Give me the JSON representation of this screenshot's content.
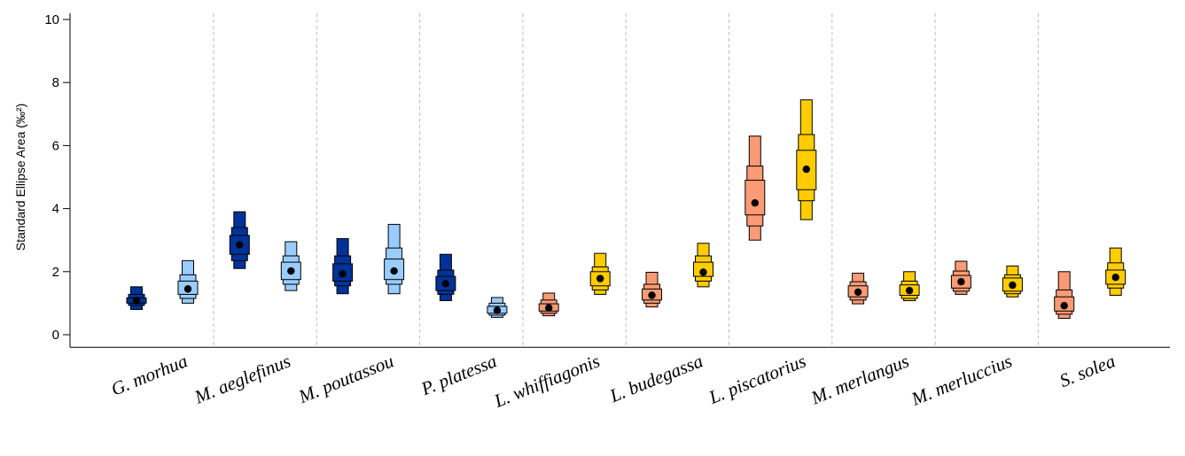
{
  "chart_data": {
    "type": "box",
    "ylabel": "Standard Ellipse Area (‰²)",
    "ylim": [
      -0.4,
      10.2
    ],
    "yticks": [
      0,
      2,
      4,
      6,
      8,
      10
    ],
    "grid": "vertical dashed separators between species",
    "colors": {
      "dark_blue": "#003399",
      "light_blue": "#99ccff",
      "salmon": "#fa9b75",
      "gold": "#ffcc00"
    },
    "categories": [
      "G. morhua",
      "M. aeglefinus",
      "M. poutassou",
      "P. platessa",
      "L. whiffiagonis",
      "L. budegassa",
      "L. piscatorius",
      "M. merlangus",
      "M. merluccius",
      "S. solea"
    ],
    "pairs": [
      [
        {
          "color": "dark_blue",
          "mode": 1.08,
          "ci50": [
            1.0,
            1.17
          ],
          "ci75": [
            0.93,
            1.28
          ],
          "ci95": [
            0.8,
            1.52
          ]
        },
        {
          "color": "light_blue",
          "mode": 1.45,
          "ci50": [
            1.28,
            1.7
          ],
          "ci75": [
            1.15,
            1.9
          ],
          "ci95": [
            1.0,
            2.35
          ]
        }
      ],
      [
        {
          "color": "dark_blue",
          "mode": 2.85,
          "ci50": [
            2.55,
            3.15
          ],
          "ci75": [
            2.35,
            3.4
          ],
          "ci95": [
            2.1,
            3.9
          ]
        },
        {
          "color": "light_blue",
          "mode": 2.02,
          "ci50": [
            1.75,
            2.3
          ],
          "ci75": [
            1.6,
            2.5
          ],
          "ci95": [
            1.4,
            2.95
          ]
        }
      ],
      [
        {
          "color": "dark_blue",
          "mode": 1.93,
          "ci50": [
            1.7,
            2.25
          ],
          "ci75": [
            1.55,
            2.5
          ],
          "ci95": [
            1.3,
            3.05
          ]
        },
        {
          "color": "light_blue",
          "mode": 2.02,
          "ci50": [
            1.75,
            2.4
          ],
          "ci75": [
            1.6,
            2.75
          ],
          "ci95": [
            1.3,
            3.5
          ]
        }
      ],
      [
        {
          "color": "dark_blue",
          "mode": 1.62,
          "ci50": [
            1.4,
            1.85
          ],
          "ci75": [
            1.28,
            2.05
          ],
          "ci95": [
            1.08,
            2.55
          ]
        },
        {
          "color": "light_blue",
          "mode": 0.77,
          "ci50": [
            0.68,
            0.9
          ],
          "ci75": [
            0.62,
            1.0
          ],
          "ci95": [
            0.55,
            1.18
          ]
        }
      ],
      [
        {
          "color": "salmon",
          "mode": 0.85,
          "ci50": [
            0.75,
            0.98
          ],
          "ci75": [
            0.68,
            1.1
          ],
          "ci95": [
            0.6,
            1.32
          ]
        },
        {
          "color": "gold",
          "mode": 1.78,
          "ci50": [
            1.55,
            2.0
          ],
          "ci75": [
            1.42,
            2.15
          ],
          "ci95": [
            1.28,
            2.58
          ]
        }
      ],
      [
        {
          "color": "salmon",
          "mode": 1.25,
          "ci50": [
            1.1,
            1.45
          ],
          "ci75": [
            1.0,
            1.6
          ],
          "ci95": [
            0.88,
            1.98
          ]
        },
        {
          "color": "gold",
          "mode": 1.98,
          "ci50": [
            1.85,
            2.3
          ],
          "ci75": [
            1.7,
            2.5
          ],
          "ci95": [
            1.52,
            2.9
          ]
        }
      ],
      [
        {
          "color": "salmon",
          "mode": 4.18,
          "ci50": [
            3.8,
            4.9
          ],
          "ci75": [
            3.45,
            5.35
          ],
          "ci95": [
            3.0,
            6.3
          ]
        },
        {
          "color": "gold",
          "mode": 5.25,
          "ci50": [
            4.6,
            5.85
          ],
          "ci75": [
            4.25,
            6.35
          ],
          "ci95": [
            3.65,
            7.45
          ]
        }
      ],
      [
        {
          "color": "salmon",
          "mode": 1.35,
          "ci50": [
            1.2,
            1.55
          ],
          "ci75": [
            1.1,
            1.68
          ],
          "ci95": [
            0.98,
            1.95
          ]
        },
        {
          "color": "gold",
          "mode": 1.4,
          "ci50": [
            1.25,
            1.58
          ],
          "ci75": [
            1.15,
            1.7
          ],
          "ci95": [
            1.08,
            2.0
          ]
        }
      ],
      [
        {
          "color": "salmon",
          "mode": 1.68,
          "ci50": [
            1.48,
            1.88
          ],
          "ci75": [
            1.38,
            2.02
          ],
          "ci95": [
            1.28,
            2.33
          ]
        },
        {
          "color": "gold",
          "mode": 1.57,
          "ci50": [
            1.38,
            1.8
          ],
          "ci75": [
            1.3,
            1.9
          ],
          "ci95": [
            1.2,
            2.18
          ]
        }
      ],
      [
        {
          "color": "salmon",
          "mode": 0.92,
          "ci50": [
            0.75,
            1.2
          ],
          "ci75": [
            0.65,
            1.42
          ],
          "ci95": [
            0.52,
            2.0
          ]
        },
        {
          "color": "gold",
          "mode": 1.82,
          "ci50": [
            1.6,
            2.05
          ],
          "ci75": [
            1.48,
            2.28
          ],
          "ci95": [
            1.25,
            2.75
          ]
        }
      ]
    ]
  }
}
